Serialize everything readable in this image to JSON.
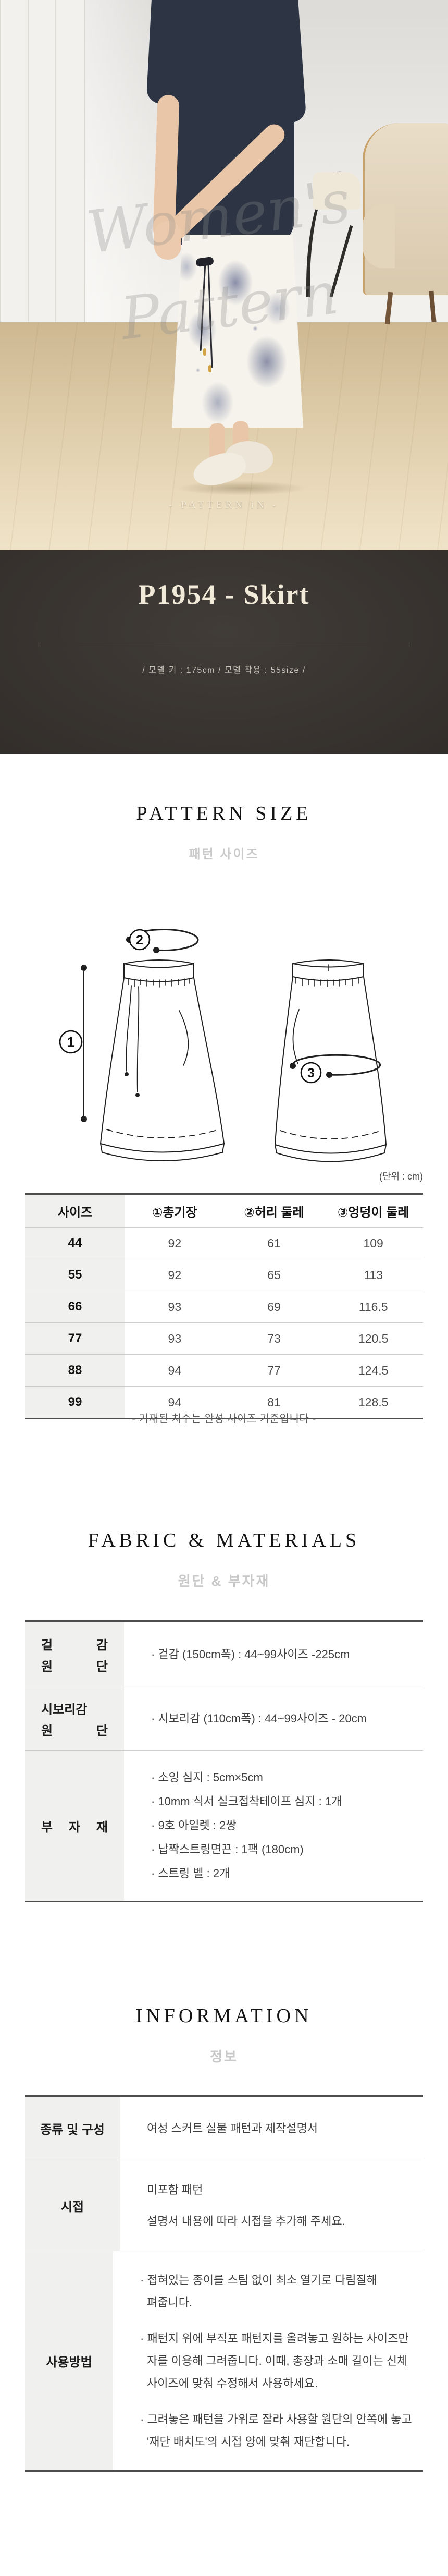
{
  "photo": {
    "watermark": "Women's Pattern",
    "badge": "-  PATTERN iN  -"
  },
  "header": {
    "title": "P1954 - Skirt",
    "model_info": "/  모델 키 : 175cm  /  모델 착용 : 55size  /"
  },
  "pattern_size": {
    "title": "PATTERN SIZE",
    "subtitle": "패턴 사이즈",
    "unit_note": "(단위 : cm)",
    "diagram": {
      "markers": [
        "1",
        "2",
        "3"
      ]
    },
    "table": {
      "headers": [
        "사이즈",
        "①총기장",
        "②허리 둘레",
        "③엉덩이 둘레"
      ],
      "rows": [
        [
          "44",
          "92",
          "61",
          "109"
        ],
        [
          "55",
          "92",
          "65",
          "113"
        ],
        [
          "66",
          "93",
          "69",
          "116.5"
        ],
        [
          "77",
          "93",
          "73",
          "120.5"
        ],
        [
          "88",
          "94",
          "77",
          "124.5"
        ],
        [
          "99",
          "94",
          "81",
          "128.5"
        ]
      ]
    },
    "note": "- 기재된 치수는 완성 사이즈 기준입니다 -"
  },
  "fabric": {
    "title": "FABRIC & MATERIALS",
    "subtitle": "원단 & 부자재",
    "rows": [
      {
        "label_lines": [
          "겉 감",
          "원 단"
        ],
        "items": [
          "· 겉감 (150cm폭) : 44~99사이즈 -225cm"
        ]
      },
      {
        "label_lines": [
          "시보리감",
          "원 단"
        ],
        "items": [
          "· 시보리감 (110cm폭) : 44~99사이즈 - 20cm"
        ]
      },
      {
        "label_lines": [
          "부 자 재"
        ],
        "items": [
          "· 소잉 심지 : 5cm×5cm",
          "· 10mm 식서 실크접착테이프 심지 : 1개",
          "· 9호 아일렛 : 2쌍",
          "· 납짝스트링면끈 : 1팩 (180cm)",
          "· 스트링 벨 : 2개"
        ]
      }
    ]
  },
  "information": {
    "title": "INFORMATION",
    "subtitle": "정보",
    "rows": [
      {
        "label_lines": [
          "종류 및 구성"
        ],
        "items": [
          "여성 스커트 실물 패턴과 제작설명서"
        ]
      },
      {
        "label_lines": [
          "시접"
        ],
        "items": [
          "미포함 패턴",
          "설명서 내용에 따라 시접을 추가해 주세요."
        ]
      },
      {
        "label_lines": [
          "사용방법"
        ],
        "items": [
          "· 접혀있는 종이를 스팀 없이 최소 열기로 다림질해 펴줍니다.",
          "· 패턴지 위에 부직포 패턴지를 올려놓고 원하는 사이즈만 자를 이용해 그려줍니다. 이때, 총장과 소매 길이는 신체 사이즈에 맞춰 수정해서 사용하세요.",
          "· 그려놓은 패턴을 가위로 잘라 사용할 원단의 안쪽에 놓고 '재단 배치도'의 시접 양에 맞춰 재단합니다."
        ]
      }
    ]
  }
}
